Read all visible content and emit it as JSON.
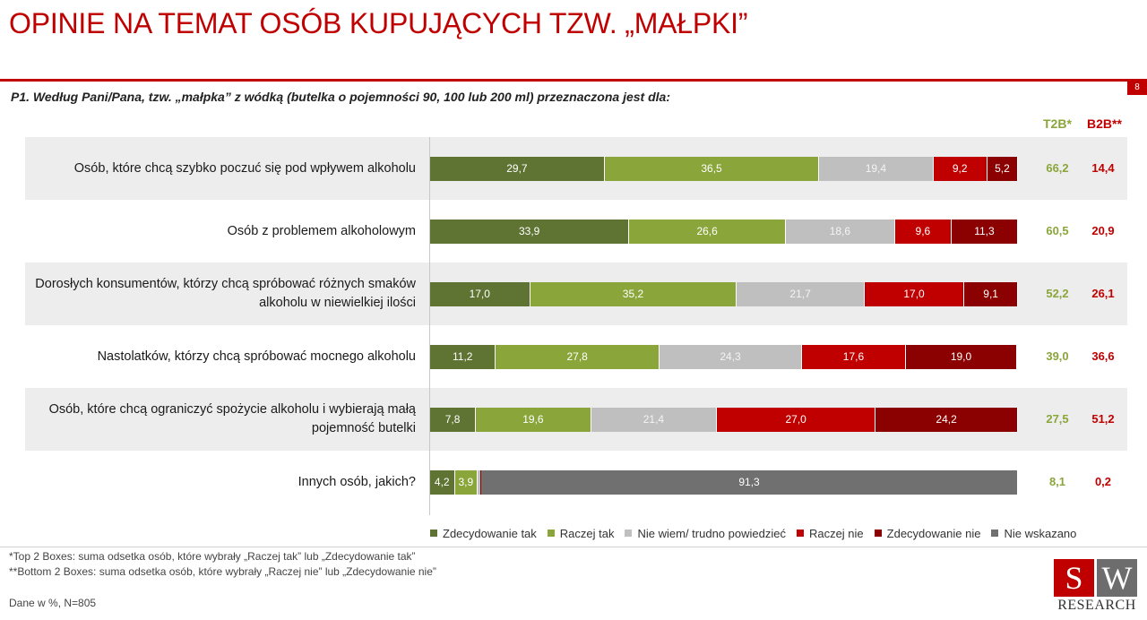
{
  "title": "OPINIE NA TEMAT OSÓB KUPUJĄCYCH TZW. „MAŁPKI”",
  "page_number": "8",
  "question": "P1. Według Pani/Pana, tzw. „małpka” z wódką (butelka o pojemności 90, 100 lub 200 ml) przeznaczona jest dla:",
  "col_t2b": "T2B*",
  "col_b2b": "B2B**",
  "footnotes": {
    "t2b": "*Top 2 Boxes: suma odsetka osób, które wybrały „Raczej tak” lub „Zdecydowanie tak”",
    "b2b": "**Bottom 2 Boxes: suma odsetka osób, które wybrały „Raczej nie” lub „Zdecydowanie nie”",
    "base": "Dane w %, N=805"
  },
  "logo": {
    "s": "S",
    "w": "W",
    "text": "RESEARCH"
  },
  "colors": {
    "zdecydowanie_tak": "#5f7433",
    "raczej_tak": "#8aa63a",
    "nie_wiem": "#bfbfbf",
    "raczej_nie": "#c00000",
    "zdecydowanie_nie": "#8b0000",
    "nie_wskazano": "#707070",
    "accent": "#c00000"
  },
  "chart_data": {
    "type": "bar",
    "orientation": "horizontal-stacked-100",
    "categories": [
      "Osób, które chcą szybko poczuć się pod wpływem alkoholu",
      "Osób z problemem alkoholowym",
      "Dorosłych konsumentów, którzy chcą spróbować różnych smaków alkoholu w niewielkiej ilości",
      "Nastolatków, którzy chcą spróbować mocnego alkoholu",
      "Osób, które chcą ograniczyć spożycie alkoholu i wybierają małą pojemność butelki",
      "Innych osób, jakich?"
    ],
    "series": [
      {
        "name": "Zdecydowanie tak",
        "values": [
          29.7,
          33.9,
          17.0,
          11.2,
          7.8,
          4.2
        ]
      },
      {
        "name": "Raczej tak",
        "values": [
          36.5,
          26.6,
          35.2,
          27.8,
          19.6,
          3.9
        ]
      },
      {
        "name": "Nie wiem/ trudno powiedzieć",
        "values": [
          19.4,
          18.6,
          21.7,
          24.3,
          21.4,
          0.4
        ]
      },
      {
        "name": "Raczej nie",
        "values": [
          9.2,
          9.6,
          17.0,
          17.6,
          27.0,
          0.1
        ]
      },
      {
        "name": "Zdecydowanie nie",
        "values": [
          5.2,
          11.3,
          9.1,
          19.0,
          24.2,
          0.1
        ]
      },
      {
        "name": "Nie wskazano",
        "values": [
          0,
          0,
          0,
          0,
          0,
          91.3
        ]
      }
    ],
    "value_labels": [
      [
        "29,7",
        "36,5",
        "19,4",
        "9,2",
        "5,2",
        ""
      ],
      [
        "33,9",
        "26,6",
        "18,6",
        "9,6",
        "11,3",
        ""
      ],
      [
        "17,0",
        "35,2",
        "21,7",
        "17,0",
        "9,1",
        ""
      ],
      [
        "11,2",
        "27,8",
        "24,3",
        "17,6",
        "19,0",
        ""
      ],
      [
        "7,8",
        "19,6",
        "21,4",
        "27,0",
        "24,2",
        ""
      ],
      [
        "4,2",
        "3,9",
        "",
        "",
        "",
        "91,3"
      ]
    ],
    "t2b": [
      "66,2",
      "60,5",
      "52,2",
      "39,0",
      "27,5",
      "8,1"
    ],
    "b2b": [
      "14,4",
      "20,9",
      "26,1",
      "36,6",
      "51,2",
      "0,2"
    ],
    "xlim": [
      0,
      100
    ],
    "legend": "bottom",
    "grid": false
  }
}
